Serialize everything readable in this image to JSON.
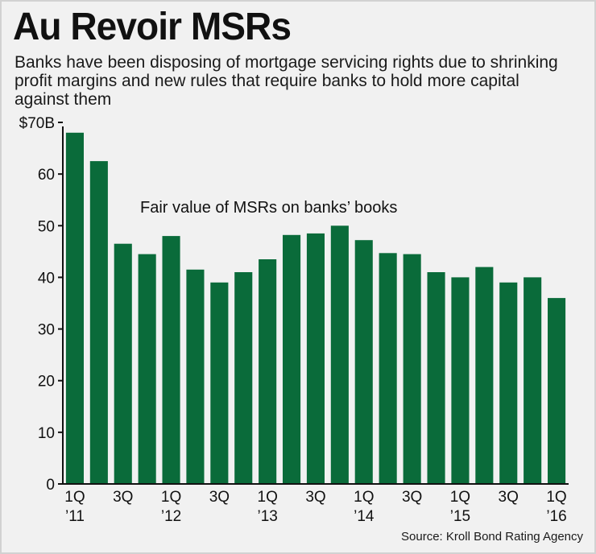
{
  "title": "Au Revoir MSRs",
  "subtitle": "Banks have been disposing of mortgage servicing rights due to shrinking profit margins and new rules that require banks to hold more capital against them",
  "source": "Source: Kroll Bond Rating Agency",
  "colors": {
    "bar": "#0a6b3a",
    "background": "#f1f1f1",
    "axis": "#111111"
  },
  "chart_data": {
    "type": "bar",
    "annotation": "Fair value of MSRs on banks’ books",
    "ylim": [
      0,
      70
    ],
    "yticks": [
      0,
      10,
      20,
      30,
      40,
      50,
      60,
      70
    ],
    "ytick_labels": [
      "0",
      "10",
      "20",
      "30",
      "40",
      "50",
      "60",
      "$70B"
    ],
    "grid": false,
    "categories": [
      "1Q 2011",
      "2Q 2011",
      "3Q 2011",
      "4Q 2011",
      "1Q 2012",
      "2Q 2012",
      "3Q 2012",
      "4Q 2012",
      "1Q 2013",
      "2Q 2013",
      "3Q 2013",
      "4Q 2013",
      "1Q 2014",
      "2Q 2014",
      "3Q 2014",
      "4Q 2014",
      "1Q 2015",
      "2Q 2015",
      "3Q 2015",
      "4Q 2015",
      "1Q 2016"
    ],
    "values": [
      68,
      62.5,
      46.5,
      44.5,
      48,
      41.5,
      39,
      41,
      43.5,
      48.2,
      48.5,
      50,
      47.2,
      44.7,
      44.5,
      41,
      40,
      42,
      39,
      40,
      36
    ],
    "x_labels": [
      {
        "index": 0,
        "line1": "1Q",
        "line2": "’11"
      },
      {
        "index": 2,
        "line1": "3Q",
        "line2": ""
      },
      {
        "index": 4,
        "line1": "1Q",
        "line2": "’12"
      },
      {
        "index": 6,
        "line1": "3Q",
        "line2": ""
      },
      {
        "index": 8,
        "line1": "1Q",
        "line2": "’13"
      },
      {
        "index": 10,
        "line1": "3Q",
        "line2": ""
      },
      {
        "index": 12,
        "line1": "1Q",
        "line2": "’14"
      },
      {
        "index": 14,
        "line1": "3Q",
        "line2": ""
      },
      {
        "index": 16,
        "line1": "1Q",
        "line2": "’15"
      },
      {
        "index": 18,
        "line1": "3Q",
        "line2": ""
      },
      {
        "index": 20,
        "line1": "1Q",
        "line2": "’16"
      }
    ]
  }
}
